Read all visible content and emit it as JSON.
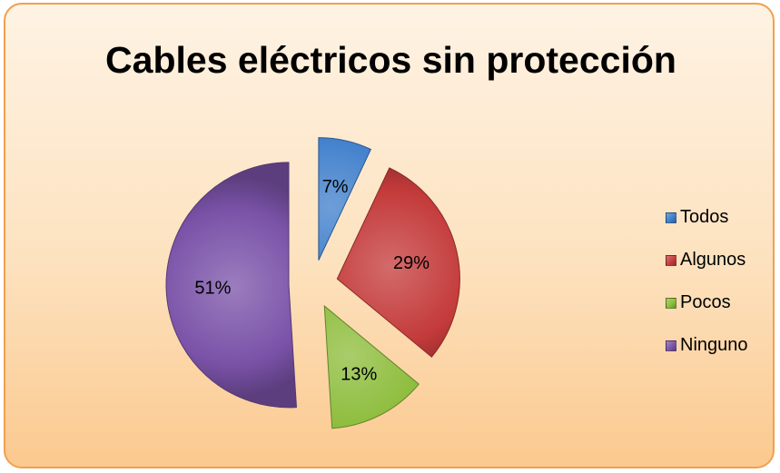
{
  "chart_data": {
    "type": "pie",
    "title": "Cables eléctricos sin protección",
    "categories": [
      "Todos",
      "Algunos",
      "Pocos",
      "Ninguno"
    ],
    "values": [
      7,
      29,
      13,
      51
    ],
    "data_labels": [
      "7%",
      "29%",
      "13%",
      "51%"
    ],
    "colors": [
      "#3d7dcb",
      "#c43a3a",
      "#8cbc3a",
      "#7a52a8"
    ],
    "exploded": true,
    "legend_position": "right"
  }
}
